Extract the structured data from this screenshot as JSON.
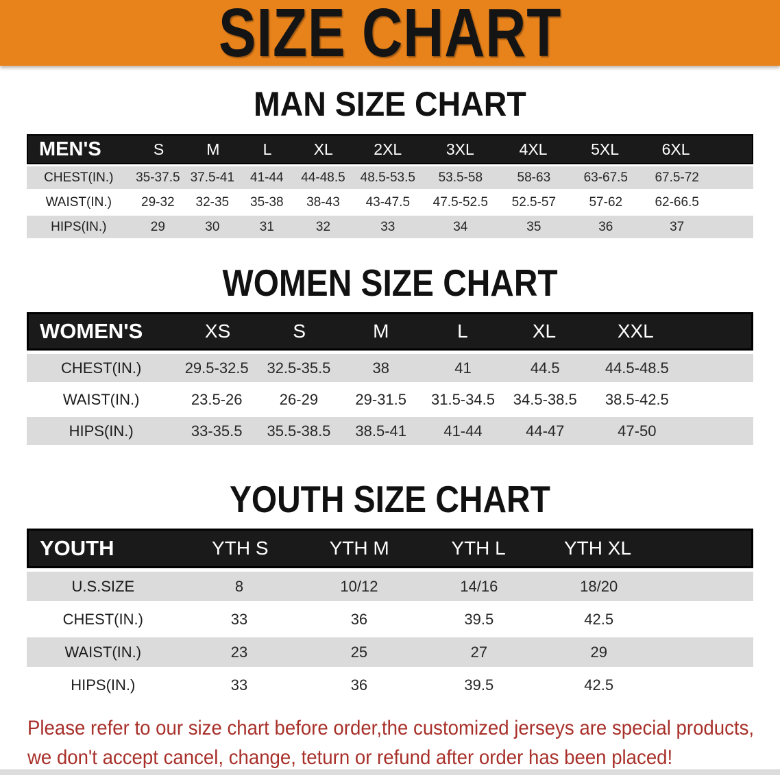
{
  "banner": {
    "title": "SIZE CHART"
  },
  "colors": {
    "accent_orange": "#E8821B",
    "header_black": "#1A1A1A",
    "row_gray": "#DBDBDB",
    "footer_red": "#A8302A"
  },
  "chart_data": [
    {
      "type": "table",
      "title": "MAN SIZE CHART",
      "corner_label": "MEN'S",
      "columns": [
        "S",
        "M",
        "L",
        "XL",
        "2XL",
        "3XL",
        "4XL",
        "5XL",
        "6XL"
      ],
      "rows": [
        {
          "label": "CHEST(IN.)",
          "values": [
            "35-37.5",
            "37.5-41",
            "41-44",
            "44-48.5",
            "48.5-53.5",
            "53.5-58",
            "58-63",
            "63-67.5",
            "67.5-72"
          ]
        },
        {
          "label": "WAIST(IN.)",
          "values": [
            "29-32",
            "32-35",
            "35-38",
            "38-43",
            "43-47.5",
            "47.5-52.5",
            "52.5-57",
            "57-62",
            "62-66.5"
          ]
        },
        {
          "label": "HIPS(IN.)",
          "values": [
            "29",
            "30",
            "31",
            "32",
            "33",
            "34",
            "35",
            "36",
            "37"
          ]
        }
      ]
    },
    {
      "type": "table",
      "title": "WOMEN SIZE CHART",
      "corner_label": "WOMEN'S",
      "columns": [
        "XS",
        "S",
        "M",
        "L",
        "XL",
        "XXL"
      ],
      "rows": [
        {
          "label": "CHEST(IN.)",
          "values": [
            "29.5-32.5",
            "32.5-35.5",
            "38",
            "41",
            "44.5",
            "44.5-48.5"
          ]
        },
        {
          "label": "WAIST(IN.)",
          "values": [
            "23.5-26",
            "26-29",
            "29-31.5",
            "31.5-34.5",
            "34.5-38.5",
            "38.5-42.5"
          ]
        },
        {
          "label": "HIPS(IN.)",
          "values": [
            "33-35.5",
            "35.5-38.5",
            "38.5-41",
            "41-44",
            "44-47",
            "47-50"
          ]
        }
      ]
    },
    {
      "type": "table",
      "title": "YOUTH SIZE CHART",
      "corner_label": "YOUTH",
      "columns": [
        "YTH S",
        "YTH M",
        "YTH L",
        "YTH XL"
      ],
      "rows": [
        {
          "label": "U.S.SIZE",
          "values": [
            "8",
            "10/12",
            "14/16",
            "18/20"
          ]
        },
        {
          "label": "CHEST(IN.)",
          "values": [
            "33",
            "36",
            "39.5",
            "42.5"
          ]
        },
        {
          "label": "WAIST(IN.)",
          "values": [
            "23",
            "25",
            "27",
            "29"
          ]
        },
        {
          "label": "HIPS(IN.)",
          "values": [
            "33",
            "36",
            "39.5",
            "42.5"
          ]
        }
      ]
    }
  ],
  "footer": {
    "line1": "Please refer to our size chart before order,the customized jerseys are special products,",
    "line2": "we don't accept cancel, change, teturn or refund after order has been placed!"
  }
}
